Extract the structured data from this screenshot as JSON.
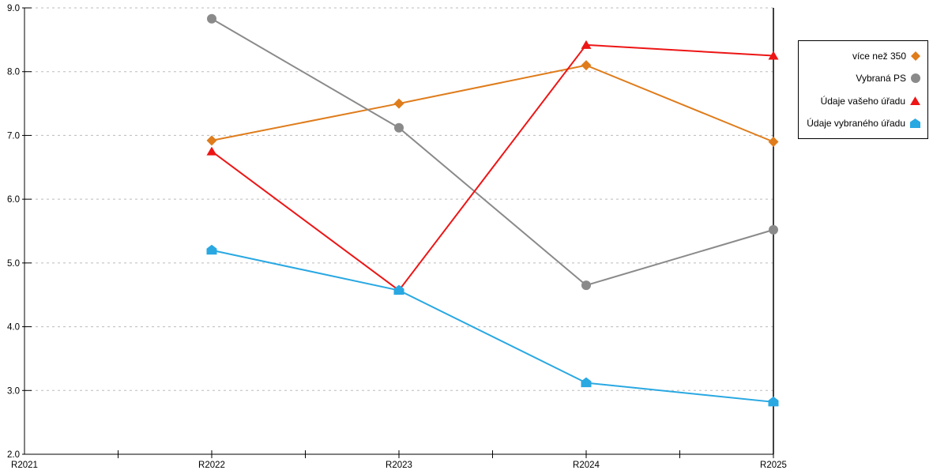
{
  "chart_data": {
    "type": "line",
    "categories": [
      "R2021",
      "R2022",
      "R2023",
      "R2024",
      "R2025"
    ],
    "series": [
      {
        "name": "více než 350",
        "marker": "diamond",
        "color": "#DF7C1B",
        "values": [
          null,
          6.92,
          7.5,
          8.1,
          6.9
        ]
      },
      {
        "name": "Vybraná PS",
        "marker": "circle",
        "color": "#8A8A8A",
        "values": [
          null,
          8.83,
          7.12,
          4.65,
          5.52
        ]
      },
      {
        "name": "Údaje vašeho úřadu",
        "marker": "triangle",
        "color": "#ED1515",
        "values": [
          null,
          6.75,
          4.57,
          8.42,
          8.25
        ]
      },
      {
        "name": "Údaje vybraného úřadu",
        "marker": "pentagon",
        "color": "#29A8E2",
        "values": [
          null,
          5.2,
          4.57,
          3.12,
          2.82
        ]
      }
    ],
    "title": "",
    "xlabel": "",
    "ylabel": "",
    "ylim": [
      2.0,
      9.0
    ],
    "ytick_labels": [
      "2.0",
      "3.0",
      "4.0",
      "5.0",
      "6.0",
      "7.0",
      "8.0",
      "9.0"
    ],
    "grid": "horizontal-dashed",
    "grid_color": "#BBBBBB",
    "axis_color": "#000000",
    "legend_position": "right-outside"
  }
}
